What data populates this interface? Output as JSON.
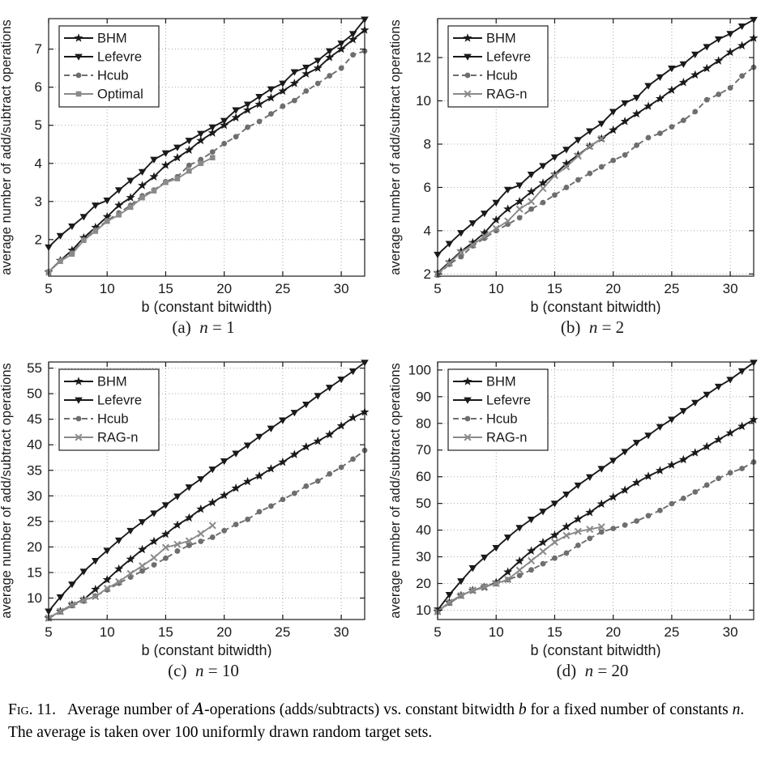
{
  "figure": {
    "caption": {
      "label": "Fig. 11.",
      "seg1": "Average number of ",
      "cal_a": "A",
      "seg2": "-operations (adds/subtracts) vs. constant bitwidth ",
      "var_b": "b",
      "seg3": " for a fixed number of constants ",
      "var_n": "n",
      "seg4": ". The average is taken over 100 uniformly drawn random target sets."
    }
  },
  "style": {
    "background": "#ffffff",
    "axis_color": "#1a1a1a",
    "grid_color": "#a8a8a8",
    "text_color": "#1a1a1a",
    "legend_border": "#222222",
    "black_series": "#1a1a1a",
    "gray_dashed_series": "#6e6e6e",
    "gray_solid_series": "#8a8a8a"
  },
  "chart_data": [
    {
      "panel": "a",
      "type": "line",
      "subcaption": {
        "prefix": "(a) ",
        "var": "n",
        "suffix": " = 1"
      },
      "xlabel": "b (constant bitwidth)",
      "ylabel": "average number of add/subtract operations",
      "xlim": [
        5,
        32
      ],
      "ylim": [
        1.04,
        7.8
      ],
      "xticks": [
        5,
        10,
        15,
        20,
        25,
        30
      ],
      "yticks": [
        2,
        3,
        4,
        5,
        6,
        7
      ],
      "x_start": 5,
      "x_step": 1,
      "grid": true,
      "legend_position": "top-left",
      "series": [
        {
          "name": "BHM",
          "color": "#1a1a1a",
          "marker": "star",
          "line": "solid",
          "values": [
            1.15,
            1.45,
            1.72,
            2.05,
            2.32,
            2.6,
            2.9,
            3.1,
            3.42,
            3.65,
            3.95,
            4.15,
            4.35,
            4.6,
            4.8,
            5.0,
            5.2,
            5.4,
            5.55,
            5.72,
            5.9,
            6.1,
            6.35,
            6.5,
            6.78,
            7.0,
            7.25,
            7.5
          ]
        },
        {
          "name": "Lefevre",
          "color": "#1a1a1a",
          "marker": "triangle-down",
          "line": "solid",
          "values": [
            1.8,
            2.1,
            2.35,
            2.6,
            2.9,
            3.03,
            3.3,
            3.55,
            3.78,
            4.1,
            4.27,
            4.42,
            4.6,
            4.78,
            4.95,
            5.12,
            5.4,
            5.55,
            5.75,
            5.95,
            6.1,
            6.4,
            6.52,
            6.7,
            6.95,
            7.15,
            7.4,
            7.78
          ]
        },
        {
          "name": "Hcub",
          "color": "#6e6e6e",
          "marker": "circle",
          "line": "dashed",
          "values": [
            1.15,
            1.45,
            1.65,
            2.0,
            2.25,
            2.5,
            2.7,
            2.9,
            3.15,
            3.3,
            3.52,
            3.65,
            3.95,
            4.1,
            4.3,
            4.52,
            4.7,
            4.95,
            5.1,
            5.3,
            5.5,
            5.65,
            5.9,
            6.1,
            6.3,
            6.5,
            6.85,
            6.95
          ]
        },
        {
          "name": "Optimal",
          "color": "#8a8a8a",
          "marker": "square",
          "line": "solid",
          "values": [
            1.15,
            1.43,
            1.62,
            1.98,
            2.22,
            2.48,
            2.65,
            2.85,
            3.1,
            3.28,
            3.5,
            3.6,
            3.8,
            4.0,
            4.15
          ]
        }
      ]
    },
    {
      "panel": "b",
      "type": "line",
      "subcaption": {
        "prefix": "(b) ",
        "var": "n",
        "suffix": " = 2"
      },
      "xlabel": "b (constant bitwidth)",
      "ylabel": "average number of add/subtract operations",
      "xlim": [
        5,
        32
      ],
      "ylim": [
        1.9,
        13.8
      ],
      "xticks": [
        5,
        10,
        15,
        20,
        25,
        30
      ],
      "yticks": [
        2,
        4,
        6,
        8,
        10,
        12
      ],
      "x_start": 5,
      "x_step": 1,
      "grid": true,
      "legend_position": "top-left",
      "series": [
        {
          "name": "BHM",
          "color": "#1a1a1a",
          "marker": "star",
          "line": "solid",
          "values": [
            2.05,
            2.55,
            3.05,
            3.45,
            3.9,
            4.5,
            5.0,
            5.35,
            5.8,
            6.2,
            6.6,
            7.1,
            7.5,
            7.9,
            8.25,
            8.65,
            9.05,
            9.4,
            9.75,
            10.1,
            10.5,
            10.85,
            11.2,
            11.5,
            11.85,
            12.25,
            12.55,
            12.9
          ]
        },
        {
          "name": "Lefevre",
          "color": "#1a1a1a",
          "marker": "triangle-down",
          "line": "solid",
          "values": [
            2.9,
            3.4,
            3.9,
            4.35,
            4.8,
            5.3,
            5.9,
            6.1,
            6.6,
            7.0,
            7.4,
            7.75,
            8.2,
            8.6,
            8.95,
            9.5,
            9.9,
            10.15,
            10.7,
            11.1,
            11.5,
            11.7,
            12.15,
            12.5,
            12.85,
            13.1,
            13.45,
            13.75
          ]
        },
        {
          "name": "Hcub",
          "color": "#6e6e6e",
          "marker": "circle",
          "line": "dashed",
          "values": [
            1.95,
            2.45,
            2.8,
            3.3,
            3.65,
            4.0,
            4.3,
            4.6,
            5.0,
            5.3,
            5.65,
            6.0,
            6.35,
            6.65,
            6.95,
            7.25,
            7.5,
            7.95,
            8.3,
            8.5,
            8.8,
            9.1,
            9.5,
            10.05,
            10.3,
            10.6,
            11.15,
            11.55
          ]
        },
        {
          "name": "RAG-n",
          "color": "#8a8a8a",
          "marker": "x",
          "line": "solid",
          "values": [
            2.0,
            2.5,
            3.0,
            3.35,
            3.75,
            4.1,
            4.45,
            5.0,
            5.35,
            5.95,
            6.55,
            6.95,
            7.45,
            7.9,
            8.25
          ]
        }
      ]
    },
    {
      "panel": "c",
      "type": "line",
      "subcaption": {
        "prefix": "(c) ",
        "var": "n",
        "suffix": " = 10"
      },
      "xlabel": "b (constant bitwidth)",
      "ylabel": "average number of add/subtract operations",
      "xlim": [
        5,
        32
      ],
      "ylim": [
        5.8,
        56.2
      ],
      "xticks": [
        5,
        10,
        15,
        20,
        25,
        30
      ],
      "yticks": [
        10,
        15,
        20,
        25,
        30,
        35,
        40,
        45,
        50,
        55
      ],
      "x_start": 5,
      "x_step": 1,
      "grid": true,
      "legend_position": "top-left",
      "series": [
        {
          "name": "BHM",
          "color": "#1a1a1a",
          "marker": "star",
          "line": "solid",
          "values": [
            6.1,
            7.4,
            8.7,
            9.7,
            11.7,
            13.6,
            15.7,
            17.6,
            19.5,
            21.1,
            22.5,
            24.3,
            25.7,
            27.4,
            28.7,
            30.1,
            31.5,
            32.8,
            33.9,
            35.3,
            36.6,
            38.1,
            39.6,
            40.7,
            42.0,
            43.7,
            45.3,
            46.4
          ]
        },
        {
          "name": "Lefevre",
          "color": "#1a1a1a",
          "marker": "triangle-down",
          "line": "solid",
          "values": [
            7.4,
            10.2,
            12.7,
            15.2,
            17.3,
            19.3,
            21.3,
            23.2,
            24.9,
            26.6,
            28.2,
            29.9,
            31.7,
            33.3,
            35.2,
            36.8,
            38.3,
            39.9,
            41.6,
            43.2,
            44.8,
            46.3,
            47.9,
            49.6,
            51.2,
            52.8,
            54.4,
            56.1
          ]
        },
        {
          "name": "Hcub",
          "color": "#6e6e6e",
          "marker": "circle",
          "line": "dashed",
          "values": [
            6.0,
            7.3,
            8.5,
            9.4,
            10.4,
            11.6,
            12.9,
            14.1,
            15.3,
            16.5,
            17.8,
            19.2,
            20.3,
            21.1,
            21.9,
            23.2,
            24.4,
            25.4,
            26.9,
            28.0,
            29.3,
            30.5,
            31.9,
            32.9,
            34.3,
            35.6,
            37.2,
            38.9
          ]
        },
        {
          "name": "RAG-n",
          "color": "#8a8a8a",
          "marker": "x",
          "line": "solid",
          "values": [
            6.1,
            7.4,
            8.7,
            9.6,
            10.3,
            11.9,
            13.2,
            14.8,
            16.3,
            17.9,
            19.9,
            20.5,
            21.2,
            22.6,
            24.2
          ]
        }
      ]
    },
    {
      "panel": "d",
      "type": "line",
      "subcaption": {
        "prefix": "(d) ",
        "var": "n",
        "suffix": " = 20"
      },
      "xlabel": "b (constant bitwidth)",
      "ylabel": "average number of add/subtract operations",
      "xlim": [
        5,
        32
      ],
      "ylim": [
        6.5,
        103
      ],
      "xticks": [
        5,
        10,
        15,
        20,
        25,
        30
      ],
      "yticks": [
        10,
        20,
        30,
        40,
        50,
        60,
        70,
        80,
        90,
        100
      ],
      "x_start": 5,
      "x_step": 1,
      "grid": true,
      "legend_position": "top-left",
      "series": [
        {
          "name": "BHM",
          "color": "#1a1a1a",
          "marker": "star",
          "line": "solid",
          "values": [
            9.5,
            12.9,
            15.5,
            17.4,
            18.6,
            20.4,
            24.3,
            28.4,
            32.2,
            35.4,
            38.1,
            41.3,
            44.1,
            46.6,
            49.8,
            52.4,
            55.0,
            57.8,
            60.2,
            62.3,
            64.4,
            66.4,
            69.0,
            71.3,
            73.9,
            76.4,
            78.9,
            81.4
          ]
        },
        {
          "name": "Lefevre",
          "color": "#1a1a1a",
          "marker": "triangle-down",
          "line": "solid",
          "values": [
            10.0,
            15.8,
            20.9,
            25.8,
            29.8,
            33.4,
            37.3,
            40.9,
            44.0,
            47.0,
            50.0,
            53.4,
            56.8,
            59.9,
            63.0,
            66.1,
            69.4,
            72.8,
            75.5,
            78.7,
            81.5,
            84.7,
            87.8,
            90.8,
            93.8,
            96.4,
            99.6,
            102.8
          ]
        },
        {
          "name": "Hcub",
          "color": "#6e6e6e",
          "marker": "circle",
          "line": "dashed",
          "values": [
            9.4,
            12.6,
            15.4,
            17.4,
            18.9,
            19.9,
            21.4,
            23.0,
            25.1,
            27.4,
            29.5,
            31.4,
            34.3,
            36.9,
            39.3,
            40.6,
            41.9,
            43.4,
            45.4,
            47.4,
            49.9,
            51.9,
            54.3,
            56.9,
            59.4,
            61.5,
            63.1,
            65.5
          ]
        },
        {
          "name": "RAG-n",
          "color": "#8a8a8a",
          "marker": "x",
          "line": "solid",
          "values": [
            9.5,
            13.0,
            15.5,
            17.5,
            18.7,
            20.0,
            21.5,
            25.0,
            28.5,
            32.0,
            35.5,
            38.0,
            39.5,
            40.3,
            41.2
          ]
        }
      ]
    }
  ]
}
